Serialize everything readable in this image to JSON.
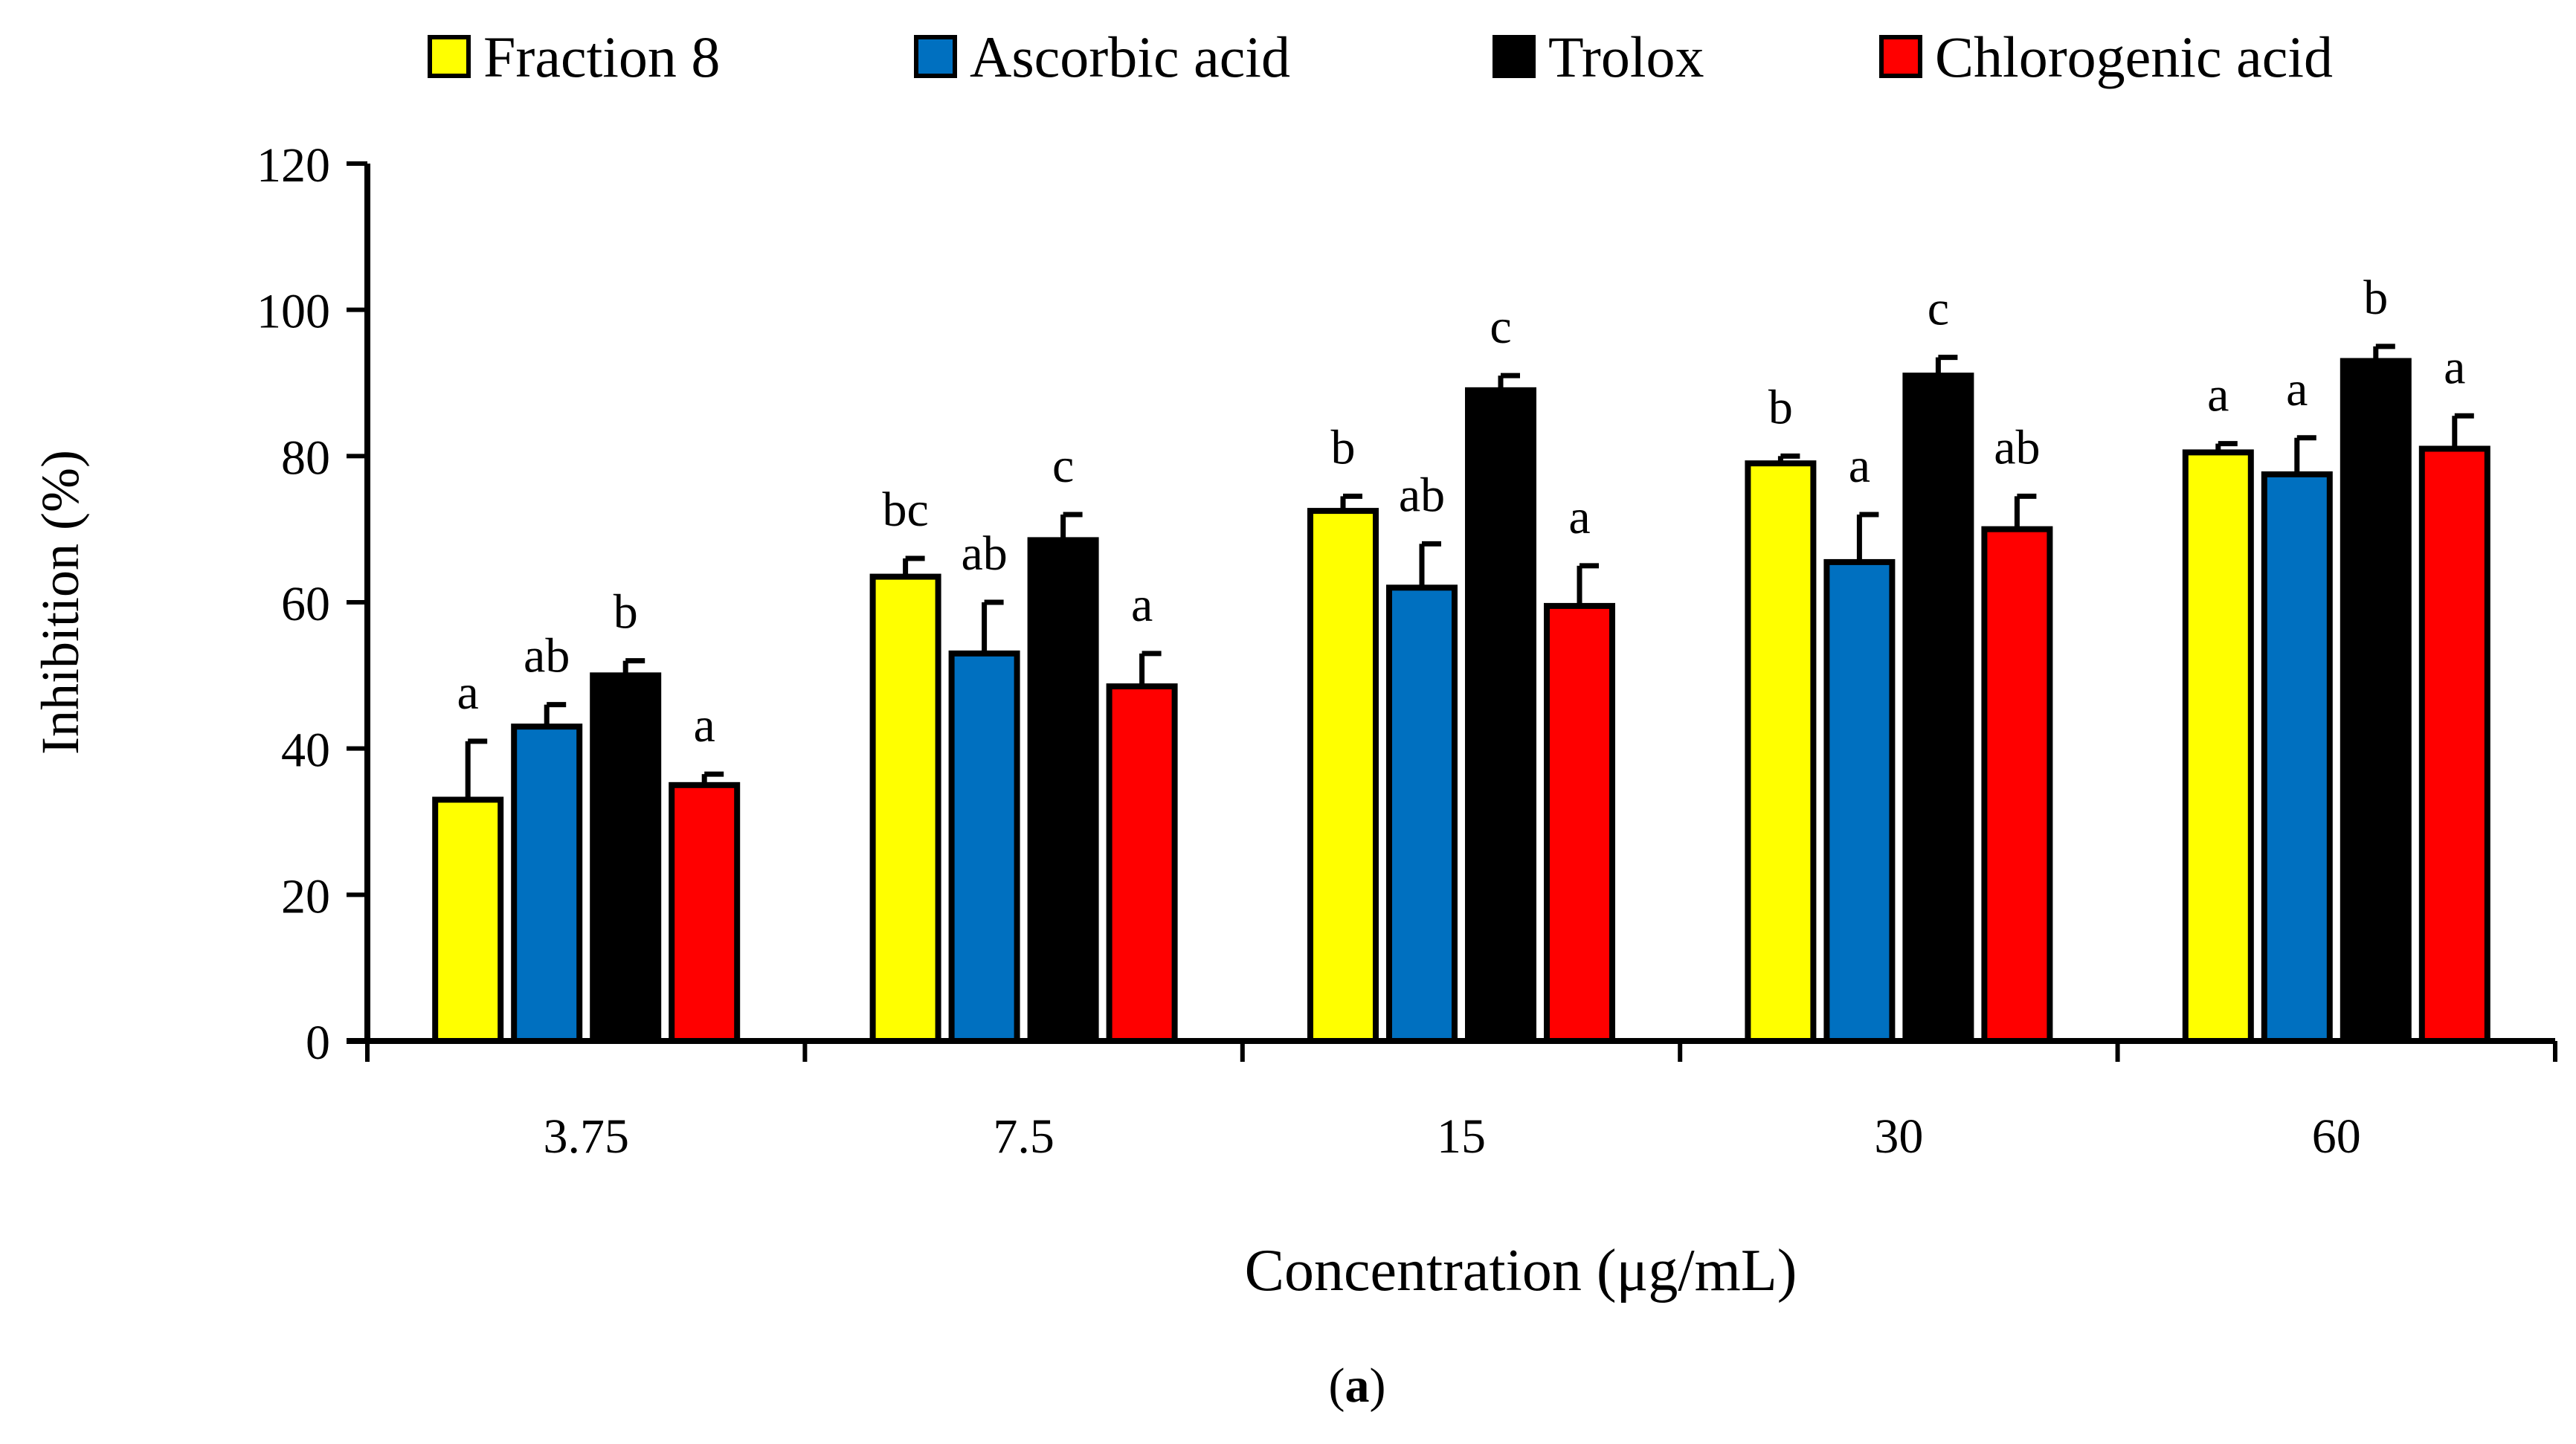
{
  "chart_data": {
    "type": "bar",
    "xlabel": "Concentration (μg/mL)",
    "ylabel": "Inhibition (%)",
    "caption_letter": "a",
    "ylim": [
      0,
      120
    ],
    "yticks": [
      0,
      20,
      40,
      60,
      80,
      100,
      120
    ],
    "categories": [
      "3.75",
      "7.5",
      "15",
      "30",
      "60"
    ],
    "legend_position": "top",
    "series": [
      {
        "name": "Fraction 8",
        "color": "#ffff00",
        "values": [
          33,
          63.5,
          72.5,
          79,
          80.5
        ],
        "errors": [
          8,
          2.5,
          2,
          1,
          1.2
        ],
        "letters": [
          "a",
          "bc",
          "b",
          "b",
          "a"
        ]
      },
      {
        "name": "Ascorbic acid",
        "color": "#0070c0",
        "values": [
          43,
          53,
          62,
          65.5,
          77.5
        ],
        "errors": [
          3,
          7,
          6,
          6.5,
          5
        ],
        "letters": [
          "ab",
          "ab",
          "ab",
          "a",
          "a"
        ]
      },
      {
        "name": "Trolox",
        "color": "#000000",
        "values": [
          50,
          68.5,
          89,
          91,
          93
        ],
        "errors": [
          2,
          3.5,
          2,
          2.5,
          2
        ],
        "letters": [
          "b",
          "c",
          "c",
          "c",
          "b"
        ]
      },
      {
        "name": "Chlorogenic acid",
        "color": "#ff0000",
        "values": [
          35,
          48.5,
          59.5,
          70,
          81
        ],
        "errors": [
          1.5,
          4.5,
          5.5,
          4.5,
          4.5
        ],
        "letters": [
          "a",
          "a",
          "a",
          "ab",
          "a"
        ]
      }
    ]
  }
}
